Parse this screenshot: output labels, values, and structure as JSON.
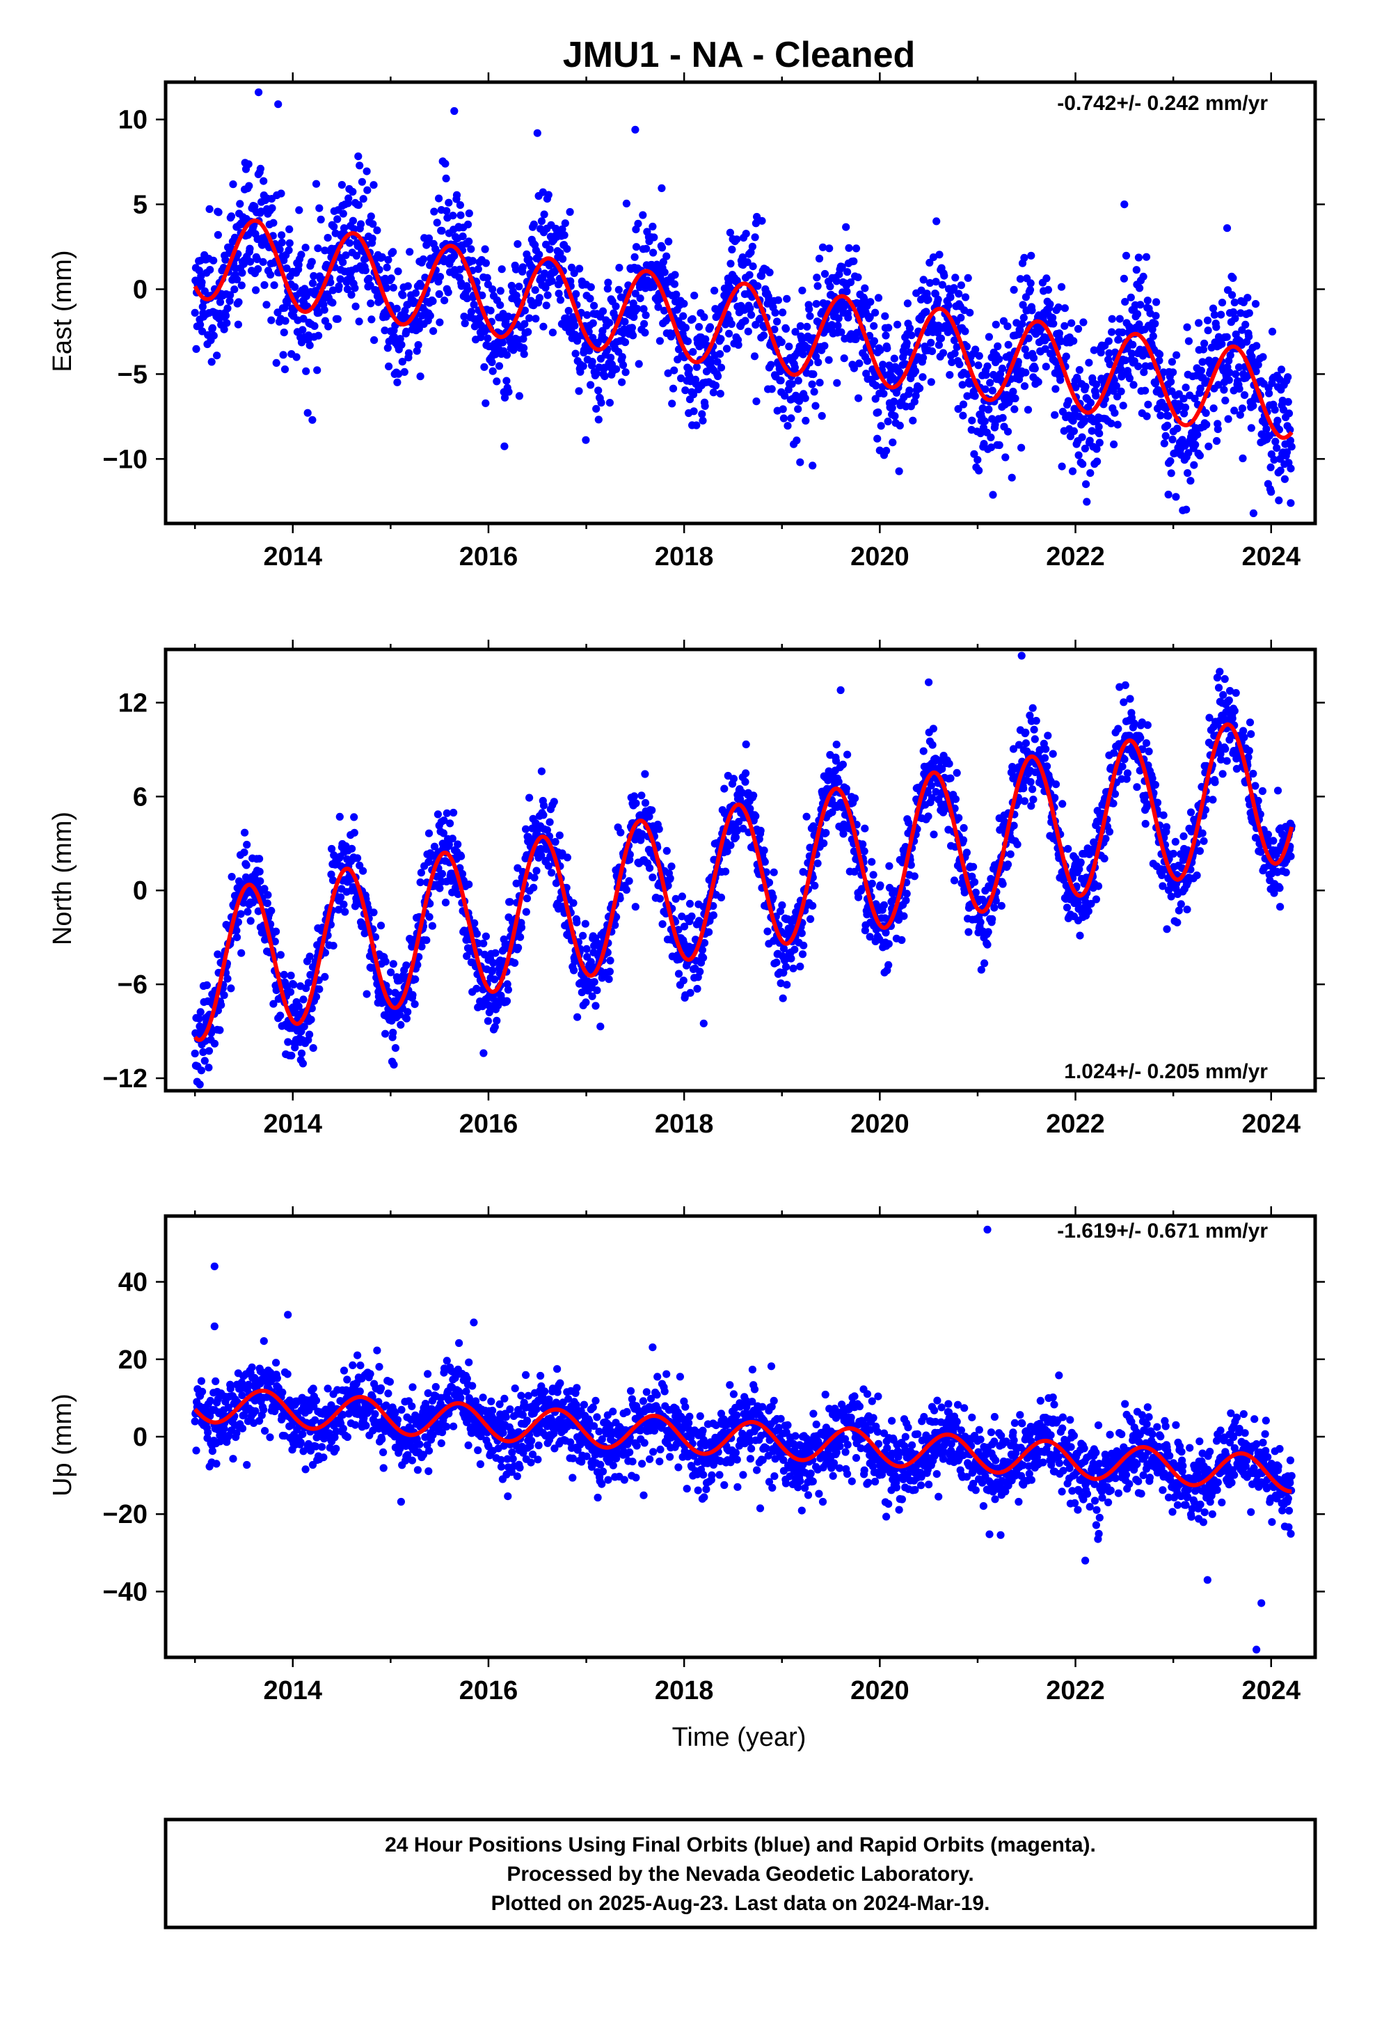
{
  "title": "JMU1  - NA - Cleaned",
  "xaxis_label": "Time (year)",
  "footer": {
    "line1": "24 Hour Positions Using Final Orbits (blue) and Rapid Orbits (magenta).",
    "line2": "Processed by the Nevada Geodetic Laboratory.",
    "line3": "Plotted on 2025-Aug-23. Last data on 2024-Mar-19."
  },
  "colors": {
    "points": "#0000ff",
    "fit": "#ff0000",
    "frame": "#000000"
  },
  "chart_data": [
    {
      "type": "scatter",
      "panel": "east",
      "ylabel": "East (mm)",
      "rate_text": "-0.742+/- 0.242 mm/yr",
      "xlim": [
        2012.7,
        2024.45
      ],
      "ylim": [
        -13.8,
        12.2
      ],
      "x_ticks": [
        2014,
        2016,
        2018,
        2020,
        2022,
        2024
      ],
      "y_ticks": [
        10,
        5,
        0,
        -5,
        -10
      ],
      "y_tick_labels": [
        "10",
        "5",
        "0",
        "−5",
        "−10"
      ],
      "data_start": 2013.0,
      "data_end": 2024.21,
      "series": [
        {
          "name": "Daily positions",
          "style": "points",
          "trend": {
            "intercept": 2.0,
            "rate": -0.742
          },
          "seasonal": {
            "amplitude": 2.5,
            "peak_phase": 0.62
          },
          "scatter_mm": 1.9,
          "outliers": [
            {
              "x": 2013.65,
              "y": 11.6
            },
            {
              "x": 2013.85,
              "y": 10.9
            },
            {
              "x": 2015.65,
              "y": 10.5
            },
            {
              "x": 2016.5,
              "y": 9.2
            },
            {
              "x": 2017.5,
              "y": 9.4
            },
            {
              "x": 2020.0,
              "y": -9.5
            },
            {
              "x": 2021.35,
              "y": -11.1
            },
            {
              "x": 2022.5,
              "y": 5.0
            },
            {
              "x": 2022.95,
              "y": -12.1
            },
            {
              "x": 2023.55,
              "y": 3.6
            },
            {
              "x": 2023.82,
              "y": -13.2
            },
            {
              "x": 2024.2,
              "y": -12.6
            }
          ]
        },
        {
          "name": "Model fit",
          "style": "line",
          "trend": {
            "intercept": 2.0,
            "rate": -0.742
          },
          "seasonal": {
            "amplitude": 2.5,
            "peak_phase": 0.62
          }
        }
      ]
    },
    {
      "type": "scatter",
      "panel": "north",
      "ylabel": "North (mm)",
      "rate_text": "1.024+/- 0.205 mm/yr",
      "xlim": [
        2012.7,
        2024.45
      ],
      "ylim": [
        -12.8,
        15.4
      ],
      "x_ticks": [
        2014,
        2016,
        2018,
        2020,
        2022,
        2024
      ],
      "y_ticks": [
        12,
        6,
        0,
        -6,
        -12
      ],
      "y_tick_labels": [
        "12",
        "6",
        "0",
        "−6",
        "−12"
      ],
      "data_start": 2013.0,
      "data_end": 2024.21,
      "series": [
        {
          "name": "Daily positions",
          "style": "points",
          "trend": {
            "intercept": -4.9,
            "rate": 1.024
          },
          "seasonal": {
            "amplitude": 4.7,
            "peak_phase": 0.55
          },
          "scatter_mm": 1.3,
          "outliers": [
            {
              "x": 2019.6,
              "y": 12.8
            },
            {
              "x": 2020.5,
              "y": 13.3
            },
            {
              "x": 2021.45,
              "y": 15.0
            },
            {
              "x": 2022.45,
              "y": 13.0
            },
            {
              "x": 2023.45,
              "y": 13.6
            },
            {
              "x": 2018.2,
              "y": -8.5
            },
            {
              "x": 2015.95,
              "y": -10.4
            },
            {
              "x": 2013.05,
              "y": -12.4
            }
          ]
        },
        {
          "name": "Model fit",
          "style": "line",
          "trend": {
            "intercept": -4.9,
            "rate": 1.024
          },
          "seasonal": {
            "amplitude": 4.7,
            "peak_phase": 0.55
          }
        }
      ]
    },
    {
      "type": "scatter",
      "panel": "up",
      "ylabel": "Up (mm)",
      "rate_text": "-1.619+/- 0.671 mm/yr",
      "xlim": [
        2012.7,
        2024.45
      ],
      "ylim": [
        -57,
        57
      ],
      "x_ticks": [
        2014,
        2016,
        2018,
        2020,
        2022,
        2024
      ],
      "y_ticks": [
        40,
        20,
        0,
        -20,
        -40
      ],
      "y_tick_labels": [
        "40",
        "20",
        "0",
        "−20",
        "−40"
      ],
      "data_start": 2013.0,
      "data_end": 2024.21,
      "series": [
        {
          "name": "Daily positions",
          "style": "points",
          "trend": {
            "intercept": 8.5,
            "rate": -1.619
          },
          "seasonal": {
            "amplitude": 4.5,
            "peak_phase": 0.7
          },
          "scatter_mm": 4.8,
          "outliers": [
            {
              "x": 2013.2,
              "y": 44
            },
            {
              "x": 2013.2,
              "y": 28.5
            },
            {
              "x": 2013.95,
              "y": 31.5
            },
            {
              "x": 2015.85,
              "y": 29.5
            },
            {
              "x": 2021.1,
              "y": 53.5
            },
            {
              "x": 2023.9,
              "y": -43
            },
            {
              "x": 2023.85,
              "y": -55
            },
            {
              "x": 2023.35,
              "y": -37
            },
            {
              "x": 2022.1,
              "y": -32
            }
          ]
        },
        {
          "name": "Model fit",
          "style": "line",
          "trend": {
            "intercept": 8.5,
            "rate": -1.619
          },
          "seasonal": {
            "amplitude": 4.5,
            "peak_phase": 0.7
          }
        }
      ]
    }
  ]
}
